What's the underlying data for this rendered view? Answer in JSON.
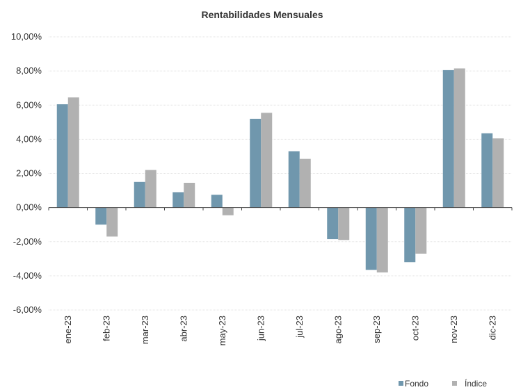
{
  "chart_data": {
    "type": "bar",
    "title": "Rentabilidades Mensuales",
    "xlabel": "",
    "ylabel": "",
    "ylim": [
      -6,
      10
    ],
    "yticks": [
      -6,
      -4,
      -2,
      0,
      2,
      4,
      6,
      8,
      10
    ],
    "ytick_labels": [
      "-6,00%",
      "-4,00%",
      "-2,00%",
      "0,00%",
      "2,00%",
      "4,00%",
      "6,00%",
      "8,00%",
      "10,00%"
    ],
    "categories": [
      "ene-23",
      "feb-23",
      "mar-23",
      "abr-23",
      "may-23",
      "jun-23",
      "jul-23",
      "ago-23",
      "sep-23",
      "oct-23",
      "nov-23",
      "dic-23"
    ],
    "series": [
      {
        "name": "Fondo",
        "color": "#7097ad",
        "values": [
          6.05,
          -1.0,
          1.5,
          0.9,
          0.75,
          5.2,
          3.3,
          -1.85,
          -3.65,
          -3.2,
          8.05,
          4.35
        ]
      },
      {
        "name": "Índice",
        "color": "#b1b1b1",
        "values": [
          6.45,
          -1.7,
          2.2,
          1.45,
          -0.45,
          5.55,
          2.85,
          -1.9,
          -3.8,
          -2.7,
          8.15,
          4.05
        ]
      }
    ],
    "grid": true,
    "legend": "bottom-right"
  }
}
